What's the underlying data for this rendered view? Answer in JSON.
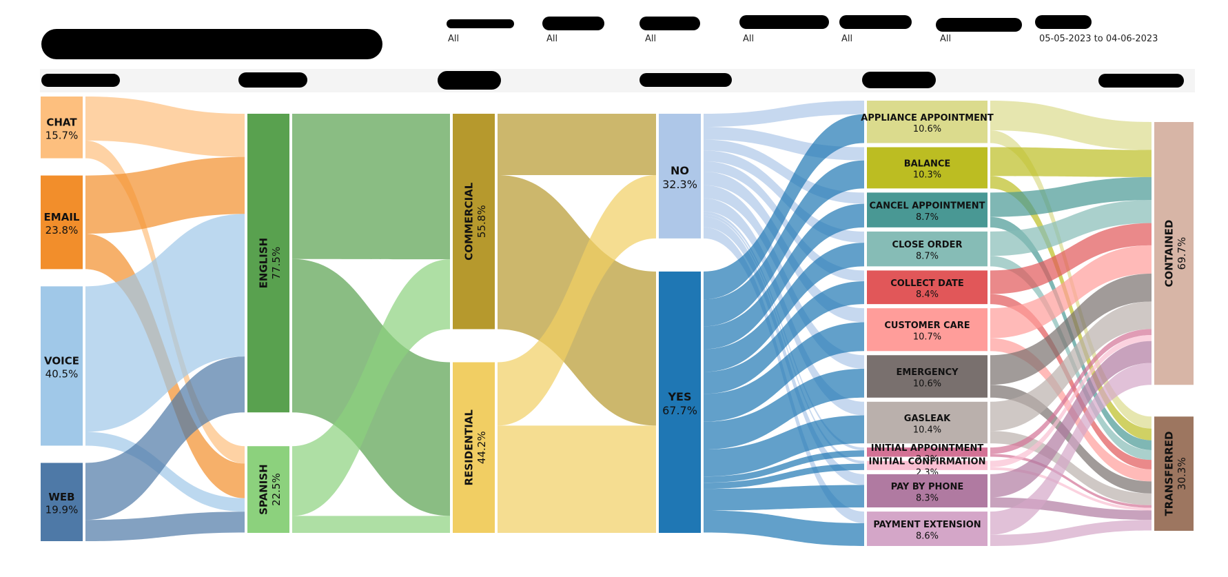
{
  "filters": [
    {
      "value": "All"
    },
    {
      "value": "All"
    },
    {
      "value": "All"
    },
    {
      "value": "All"
    },
    {
      "value": "All"
    },
    {
      "value": "All"
    },
    {
      "value": "05-05-2023 to 04-06-2023"
    }
  ],
  "chart_data": {
    "type": "sankey",
    "stages": [
      {
        "nodes": [
          {
            "label": "CHAT",
            "value_label": "15.7%",
            "value": 15.7,
            "color": "#fdbf7e"
          },
          {
            "label": "EMAIL",
            "value_label": "23.8%",
            "value": 23.8,
            "color": "#f28e2b"
          },
          {
            "label": "VOICE",
            "value_label": "40.5%",
            "value": 40.5,
            "color": "#a0c8e8"
          },
          {
            "label": "WEB",
            "value_label": "19.9%",
            "value": 19.9,
            "color": "#4e79a7"
          }
        ]
      },
      {
        "nodes": [
          {
            "label": "ENGLISH",
            "value_label": "77.5%",
            "value": 77.5,
            "color": "#59a14f"
          },
          {
            "label": "SPANISH",
            "value_label": "22.5%",
            "value": 22.5,
            "color": "#8cd17d"
          }
        ]
      },
      {
        "nodes": [
          {
            "label": "COMMERCIAL",
            "value_label": "55.8%",
            "value": 55.8,
            "color": "#b6992d"
          },
          {
            "label": "RESIDENTIAL",
            "value_label": "44.2%",
            "value": 44.2,
            "color": "#f1ce63"
          }
        ]
      },
      {
        "nodes": [
          {
            "label": "NO",
            "value_label": "32.3%",
            "value": 32.3,
            "color": "#aec7e8"
          },
          {
            "label": "YES",
            "value_label": "67.7%",
            "value": 67.7,
            "color": "#1f77b4"
          }
        ]
      },
      {
        "nodes": [
          {
            "label": "APPLIANCE APPOINTMENT",
            "value_label": "10.6%",
            "value": 10.6,
            "color": "#dbdb8d"
          },
          {
            "label": "BALANCE",
            "value_label": "10.3%",
            "value": 10.3,
            "color": "#bcbd22"
          },
          {
            "label": "CANCEL APPOINTMENT",
            "value_label": "8.7%",
            "value": 8.7,
            "color": "#499894"
          },
          {
            "label": "CLOSE ORDER",
            "value_label": "8.7%",
            "value": 8.7,
            "color": "#86bcb6"
          },
          {
            "label": "COLLECT DATE",
            "value_label": "8.4%",
            "value": 8.4,
            "color": "#e15759"
          },
          {
            "label": "CUSTOMER CARE",
            "value_label": "10.7%",
            "value": 10.7,
            "color": "#ff9d9a"
          },
          {
            "label": "EMERGENCY",
            "value_label": "10.6%",
            "value": 10.6,
            "color": "#79706e"
          },
          {
            "label": "GASLEAK",
            "value_label": "10.4%",
            "value": 10.4,
            "color": "#bab0ac"
          },
          {
            "label": "INITIAL APPOINTMENT",
            "value_label": "2.3%",
            "value": 2.3,
            "color": "#d37295"
          },
          {
            "label": "INITIAL CONFIRMATION",
            "value_label": "2.3%",
            "value": 2.3,
            "color": "#fabfd2"
          },
          {
            "label": "PAY BY PHONE",
            "value_label": "8.3%",
            "value": 8.3,
            "color": "#b07aa1"
          },
          {
            "label": "PAYMENT EXTENSION",
            "value_label": "8.6%",
            "value": 8.6,
            "color": "#d4a6c8"
          }
        ]
      },
      {
        "nodes": [
          {
            "label": "CONTAINED",
            "value_label": "69.7%",
            "value": 69.7,
            "color": "#d7b5a6"
          },
          {
            "label": "TRANSFERRED",
            "value_label": "30.3%",
            "value": 30.3,
            "color": "#9d7660"
          }
        ]
      }
    ],
    "links": [
      {
        "stage": 0,
        "source": 0,
        "target": 0,
        "value": 11.2
      },
      {
        "stage": 0,
        "source": 0,
        "target": 1,
        "value": 4.5
      },
      {
        "stage": 0,
        "source": 1,
        "target": 0,
        "value": 14.8
      },
      {
        "stage": 0,
        "source": 1,
        "target": 1,
        "value": 9.0
      },
      {
        "stage": 0,
        "source": 2,
        "target": 0,
        "value": 37.0
      },
      {
        "stage": 0,
        "source": 2,
        "target": 1,
        "value": 3.5
      },
      {
        "stage": 0,
        "source": 3,
        "target": 0,
        "value": 14.5
      },
      {
        "stage": 0,
        "source": 3,
        "target": 1,
        "value": 5.4
      },
      {
        "stage": 1,
        "source": 0,
        "target": 0,
        "value": 37.7
      },
      {
        "stage": 1,
        "source": 0,
        "target": 1,
        "value": 39.8
      },
      {
        "stage": 1,
        "source": 1,
        "target": 0,
        "value": 18.1
      },
      {
        "stage": 1,
        "source": 1,
        "target": 1,
        "value": 4.4
      },
      {
        "stage": 2,
        "source": 0,
        "target": 0,
        "value": 15.9
      },
      {
        "stage": 2,
        "source": 0,
        "target": 1,
        "value": 39.9
      },
      {
        "stage": 2,
        "source": 1,
        "target": 0,
        "value": 16.4
      },
      {
        "stage": 2,
        "source": 1,
        "target": 1,
        "value": 27.8
      },
      {
        "stage": 3,
        "source": 0,
        "target": 0,
        "value": 3.4
      },
      {
        "stage": 3,
        "source": 0,
        "target": 1,
        "value": 3.3
      },
      {
        "stage": 3,
        "source": 0,
        "target": 2,
        "value": 2.8
      },
      {
        "stage": 3,
        "source": 0,
        "target": 3,
        "value": 2.8
      },
      {
        "stage": 3,
        "source": 0,
        "target": 4,
        "value": 2.7
      },
      {
        "stage": 3,
        "source": 0,
        "target": 5,
        "value": 3.5
      },
      {
        "stage": 3,
        "source": 0,
        "target": 6,
        "value": 3.4
      },
      {
        "stage": 3,
        "source": 0,
        "target": 7,
        "value": 3.4
      },
      {
        "stage": 3,
        "source": 0,
        "target": 8,
        "value": 0.7
      },
      {
        "stage": 3,
        "source": 0,
        "target": 9,
        "value": 0.7
      },
      {
        "stage": 3,
        "source": 0,
        "target": 10,
        "value": 2.7
      },
      {
        "stage": 3,
        "source": 0,
        "target": 11,
        "value": 2.9
      },
      {
        "stage": 3,
        "source": 1,
        "target": 0,
        "value": 7.2
      },
      {
        "stage": 3,
        "source": 1,
        "target": 1,
        "value": 7.0
      },
      {
        "stage": 3,
        "source": 1,
        "target": 2,
        "value": 5.9
      },
      {
        "stage": 3,
        "source": 1,
        "target": 3,
        "value": 5.9
      },
      {
        "stage": 3,
        "source": 1,
        "target": 4,
        "value": 5.7
      },
      {
        "stage": 3,
        "source": 1,
        "target": 5,
        "value": 7.2
      },
      {
        "stage": 3,
        "source": 1,
        "target": 6,
        "value": 7.2
      },
      {
        "stage": 3,
        "source": 1,
        "target": 7,
        "value": 7.0
      },
      {
        "stage": 3,
        "source": 1,
        "target": 8,
        "value": 1.6
      },
      {
        "stage": 3,
        "source": 1,
        "target": 9,
        "value": 1.6
      },
      {
        "stage": 3,
        "source": 1,
        "target": 10,
        "value": 5.6
      },
      {
        "stage": 3,
        "source": 1,
        "target": 11,
        "value": 5.7
      },
      {
        "stage": 4,
        "source": 0,
        "target": 0,
        "value": 7.4
      },
      {
        "stage": 4,
        "source": 0,
        "target": 1,
        "value": 3.2
      },
      {
        "stage": 4,
        "source": 1,
        "target": 0,
        "value": 7.2
      },
      {
        "stage": 4,
        "source": 1,
        "target": 1,
        "value": 3.1
      },
      {
        "stage": 4,
        "source": 2,
        "target": 0,
        "value": 6.1
      },
      {
        "stage": 4,
        "source": 2,
        "target": 1,
        "value": 2.6
      },
      {
        "stage": 4,
        "source": 3,
        "target": 0,
        "value": 6.1
      },
      {
        "stage": 4,
        "source": 3,
        "target": 1,
        "value": 2.6
      },
      {
        "stage": 4,
        "source": 4,
        "target": 0,
        "value": 5.9
      },
      {
        "stage": 4,
        "source": 4,
        "target": 1,
        "value": 2.5
      },
      {
        "stage": 4,
        "source": 5,
        "target": 0,
        "value": 7.5
      },
      {
        "stage": 4,
        "source": 5,
        "target": 1,
        "value": 3.2
      },
      {
        "stage": 4,
        "source": 6,
        "target": 0,
        "value": 7.4
      },
      {
        "stage": 4,
        "source": 6,
        "target": 1,
        "value": 3.2
      },
      {
        "stage": 4,
        "source": 7,
        "target": 0,
        "value": 7.3
      },
      {
        "stage": 4,
        "source": 7,
        "target": 1,
        "value": 3.1
      },
      {
        "stage": 4,
        "source": 8,
        "target": 0,
        "value": 1.6
      },
      {
        "stage": 4,
        "source": 8,
        "target": 1,
        "value": 0.7
      },
      {
        "stage": 4,
        "source": 9,
        "target": 0,
        "value": 1.6
      },
      {
        "stage": 4,
        "source": 9,
        "target": 1,
        "value": 0.7
      },
      {
        "stage": 4,
        "source": 10,
        "target": 0,
        "value": 5.8
      },
      {
        "stage": 4,
        "source": 10,
        "target": 1,
        "value": 2.5
      },
      {
        "stage": 4,
        "source": 11,
        "target": 0,
        "value": 5.8
      },
      {
        "stage": 4,
        "source": 11,
        "target": 1,
        "value": 2.8
      }
    ]
  }
}
